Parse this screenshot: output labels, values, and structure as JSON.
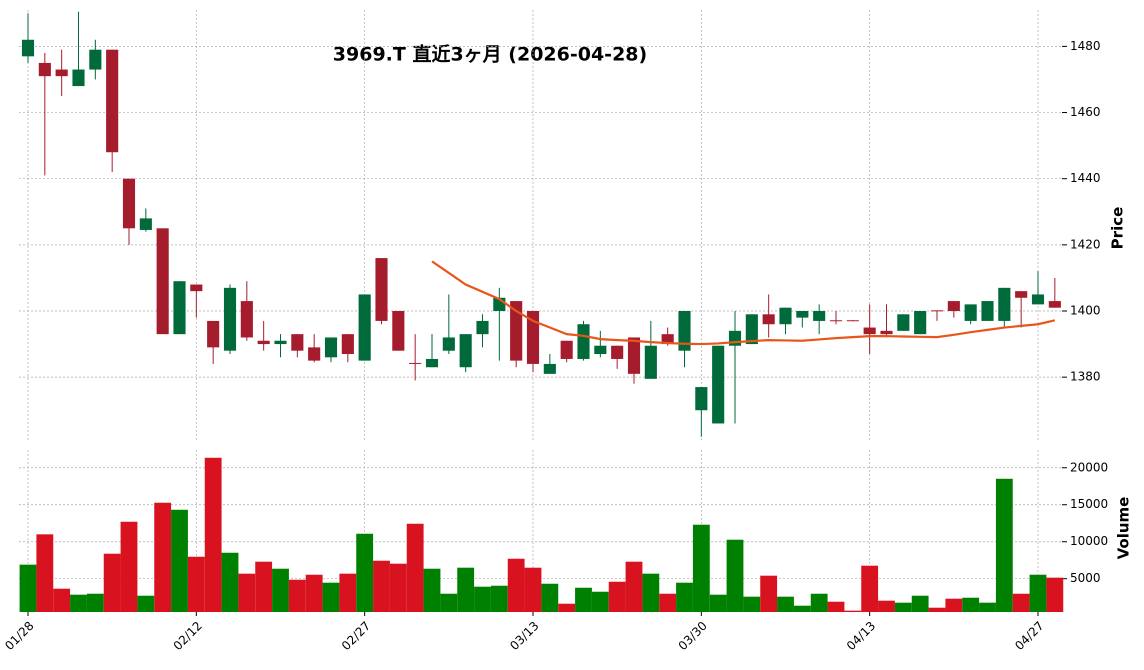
{
  "chart_data": {
    "type": "candlestick",
    "title": "3969.T  直近3ヶ月  (2026-04-28)",
    "ylabel": "Price",
    "categories": [
      "01/28",
      null,
      null,
      null,
      null,
      null,
      null,
      null,
      null,
      null,
      "02/12",
      null,
      null,
      null,
      null,
      null,
      null,
      null,
      null,
      null,
      "02/27",
      null,
      null,
      null,
      null,
      null,
      null,
      null,
      null,
      null,
      "03/13",
      null,
      null,
      null,
      null,
      null,
      null,
      null,
      null,
      null,
      "03/30",
      null,
      null,
      null,
      null,
      null,
      null,
      null,
      null,
      null,
      "04/13",
      null,
      null,
      null,
      null,
      null,
      null,
      null,
      null,
      null,
      "04/27",
      null
    ],
    "open": [
      1477,
      1475,
      1473,
      1468,
      1473,
      1479,
      1440,
      1424.5,
      1425,
      1393,
      1408,
      1397,
      1388,
      1403,
      1391,
      1390,
      1393,
      1389,
      1386,
      1393,
      1385,
      1416,
      1400,
      1384.3,
      1383,
      1388,
      1383,
      1393,
      1400,
      1403,
      1400,
      1381,
      1391,
      1385.5,
      1387,
      1389.5,
      1392,
      1379.5,
      1393,
      1388,
      1370,
      1366,
      1389.5,
      1390,
      1399,
      1396,
      1398,
      1397,
      1397.2,
      1397.2,
      1395,
      1394,
      1394,
      1393,
      1400.2,
      1403,
      1397,
      1397,
      1397,
      1406,
      1402,
      1403
    ],
    "high": [
      1490,
      1478,
      1479,
      1490.5,
      1482,
      1479,
      1440,
      1431,
      1425,
      1409,
      1408,
      1397,
      1408,
      1409,
      1397,
      1393,
      1393,
      1393,
      1392,
      1393,
      1405,
      1416,
      1400,
      1393,
      1393,
      1405,
      1393,
      1399,
      1407,
      1403,
      1400,
      1387,
      1391,
      1397,
      1394,
      1389.5,
      1392,
      1397,
      1395,
      1400,
      1377,
      1389.5,
      1400,
      1399,
      1405,
      1401,
      1400,
      1402,
      1400,
      1397.3,
      1402,
      1402,
      1399,
      1400,
      1400.2,
      1403,
      1402,
      1403,
      1407,
      1406,
      1412,
      1410
    ],
    "low": [
      1475,
      1441,
      1465,
      1468,
      1470,
      1442,
      1420,
      1424,
      1393,
      1393,
      1398,
      1384,
      1387,
      1391,
      1388,
      1386,
      1386,
      1384.5,
      1384.5,
      1384.5,
      1385,
      1396,
      1388,
      1379,
      1383,
      1387,
      1381.5,
      1389,
      1385,
      1383,
      1381.5,
      1381,
      1384.5,
      1385,
      1386,
      1382.5,
      1378,
      1379.5,
      1389.5,
      1383,
      1362,
      1366,
      1366,
      1390,
      1392,
      1393,
      1395,
      1393,
      1396,
      1397,
      1387,
      1392,
      1394,
      1393,
      1397,
      1398,
      1396,
      1397,
      1395,
      1395,
      1402,
      1401
    ],
    "close": [
      1482,
      1471,
      1471,
      1473,
      1479,
      1448,
      1425,
      1428,
      1393,
      1409,
      1406,
      1389,
      1407,
      1392,
      1390,
      1391,
      1388,
      1385,
      1392,
      1387,
      1405,
      1397,
      1388,
      1384,
      1385.5,
      1392,
      1393,
      1397,
      1404,
      1385,
      1384,
      1384,
      1385.5,
      1396,
      1389.5,
      1385.5,
      1381,
      1389.5,
      1390,
      1400,
      1377,
      1389.5,
      1394,
      1399,
      1396,
      1401,
      1400,
      1400,
      1397,
      1397.1,
      1393,
      1393,
      1399,
      1400,
      1400,
      1400,
      1402,
      1403,
      1407,
      1404,
      1405,
      1401
    ],
    "ylim": [
      1361,
      1491
    ],
    "yticks": [
      1380,
      1400,
      1420,
      1440,
      1460,
      1480
    ],
    "grid": true,
    "up_color": "#006a3a",
    "down_color": "#a51d2d",
    "ma": {
      "color": "#e8561b",
      "values": [
        null,
        null,
        null,
        null,
        null,
        null,
        null,
        null,
        null,
        null,
        null,
        null,
        null,
        null,
        null,
        null,
        null,
        null,
        null,
        null,
        null,
        null,
        null,
        null,
        1415,
        1411.5,
        1408,
        1405.8,
        1403.6,
        1400,
        1397,
        1395,
        1393,
        1392.5,
        1391.5,
        1391.2,
        1391,
        1390.6,
        1390.3,
        1390.1,
        1390,
        1390.2,
        1390.6,
        1390.9,
        1391.2,
        1391.1,
        1391,
        1391.4,
        1391.8,
        1392.1,
        1392.4,
        1392.4,
        1392.3,
        1392.2,
        1392.1,
        1392.8,
        1393.6,
        1394.3,
        1395,
        1395.5,
        1396,
        1397.2
      ]
    },
    "volume": {
      "ylabel": "Volume",
      "values": [
        6900,
        11000,
        3650,
        2840,
        2970,
        8380,
        12700,
        2700,
        15270,
        14320,
        7970,
        21350,
        8510,
        5680,
        7300,
        6350,
        4860,
        5540,
        4460,
        5680,
        11080,
        7430,
        7030,
        12430,
        6350,
        2970,
        6490,
        3920,
        4050,
        7700,
        6490,
        4320,
        1620,
        3780,
        3240,
        4590,
        7300,
        5680,
        2970,
        4460,
        12300,
        2840,
        10270,
        2570,
        5410,
        2570,
        1350,
        2970,
        1890,
        680,
        6760,
        2030,
        1760,
        2700,
        1080,
        2300,
        2430,
        1760,
        18510,
        2970,
        5540,
        5140
      ],
      "ylim": [
        500,
        22400
      ],
      "yticks": [
        5000,
        10000,
        15000,
        20000
      ],
      "up_color": "#008000",
      "down_color": "#d8121e"
    }
  }
}
